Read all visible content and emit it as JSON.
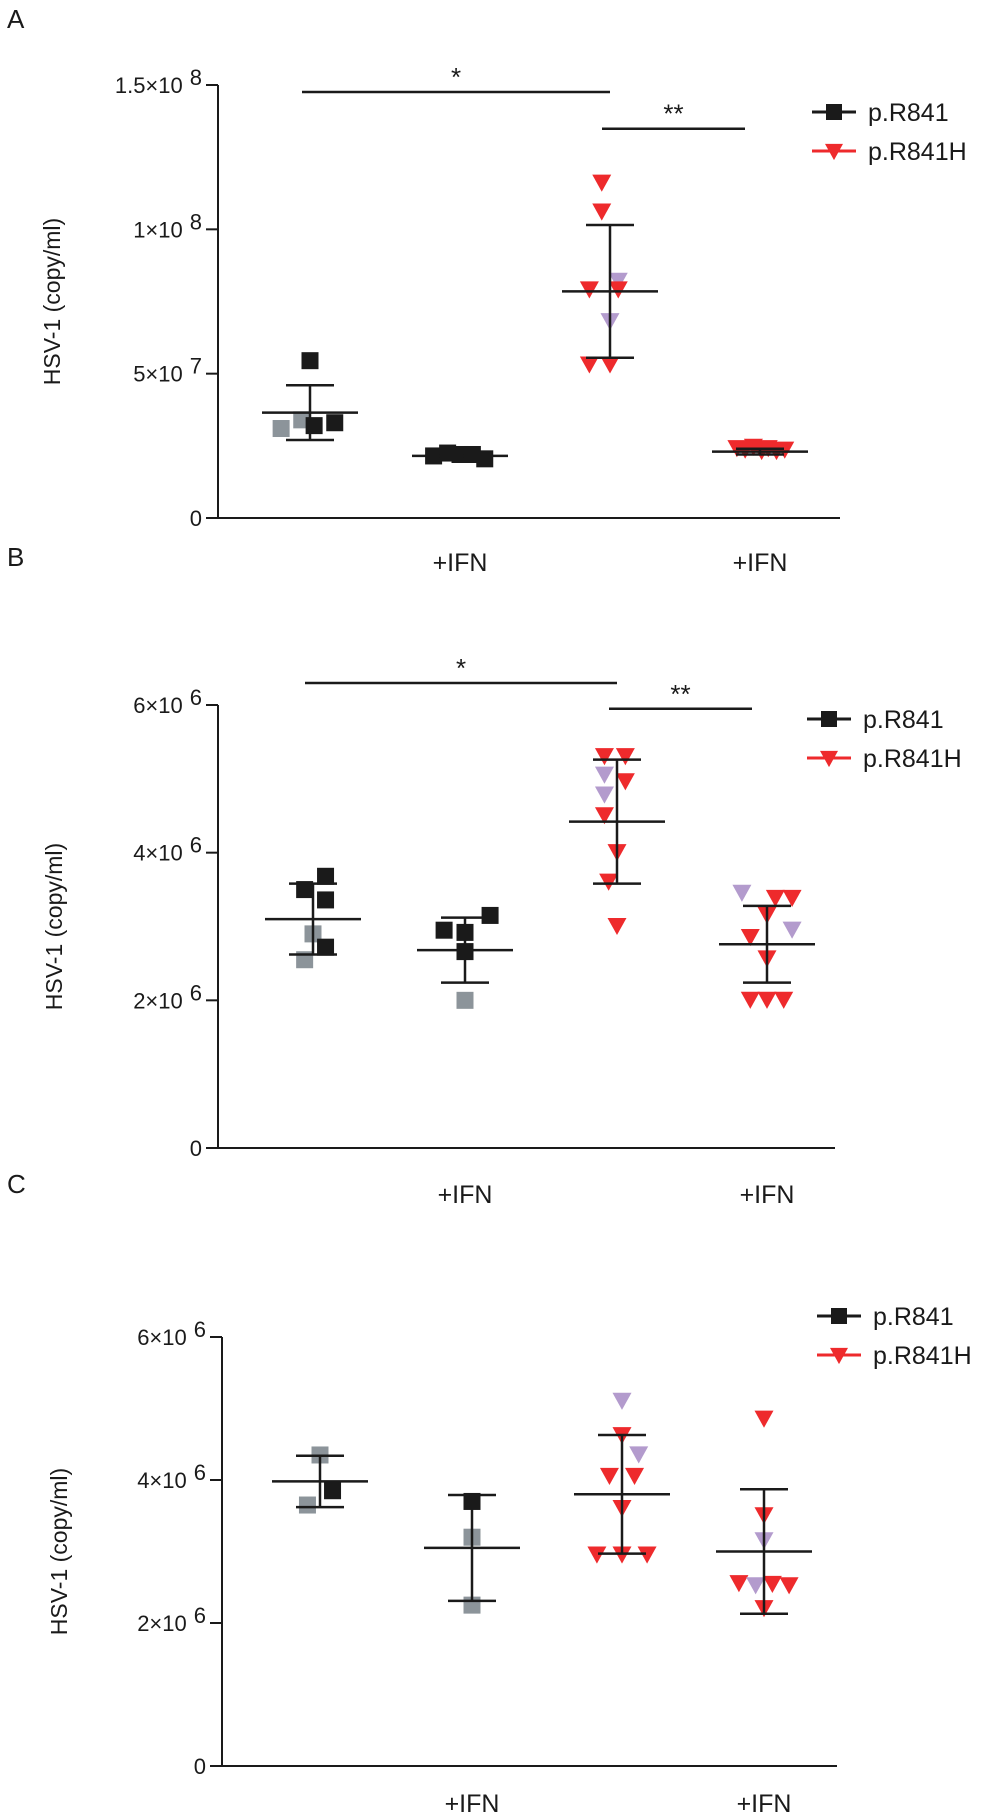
{
  "colors": {
    "black": "#1a1a1a",
    "red": "#ee2a2c",
    "gray": "#8c949a",
    "purple": "#b39bcd"
  },
  "chart_data": [
    {
      "panel": "A",
      "type": "scatter",
      "ylabel": "HSV-1 (copy/ml)",
      "ylim": [
        0,
        150000000
      ],
      "yticks": [
        {
          "value": 0,
          "mantissa": "0",
          "exponent": ""
        },
        {
          "value": 50000000,
          "mantissa": "5×10",
          "exponent": "7"
        },
        {
          "value": 100000000,
          "mantissa": "1×10",
          "exponent": "8"
        },
        {
          "value": 150000000,
          "mantissa": "1.5×10",
          "exponent": "8"
        }
      ],
      "categories": [
        "",
        "+IFN",
        "",
        "+IFN"
      ],
      "legend": [
        {
          "label": "p.R841",
          "marker": "square",
          "color": "#1a1a1a"
        },
        {
          "label": "p.R841H",
          "marker": "triangle",
          "color": "#ee2a2c"
        }
      ],
      "groups": [
        {
          "group": 0,
          "marker": "square",
          "mean": 36500000,
          "sd": 9500000,
          "points": [
            {
              "x": -0.35,
              "y": 31000000,
              "c": "gray"
            },
            {
              "x": -0.1,
              "y": 34000000,
              "c": "gray"
            },
            {
              "x": 0.0,
              "y": 54500000,
              "c": "black"
            },
            {
              "x": 0.05,
              "y": 32000000,
              "c": "black"
            },
            {
              "x": 0.3,
              "y": 33000000,
              "c": "black"
            }
          ]
        },
        {
          "group": 1,
          "marker": "square",
          "mean": 21500000,
          "sd": 0,
          "points": [
            {
              "x": -0.32,
              "y": 21500000,
              "c": "black"
            },
            {
              "x": -0.15,
              "y": 22500000,
              "c": "black"
            },
            {
              "x": 0.0,
              "y": 22000000,
              "c": "black"
            },
            {
              "x": 0.15,
              "y": 22000000,
              "c": "black"
            },
            {
              "x": 0.3,
              "y": 20500000,
              "c": "black"
            }
          ]
        },
        {
          "group": 2,
          "marker": "triangle",
          "mean": 78500000,
          "sd": 23000000,
          "points": [
            {
              "x": -0.1,
              "y": 116000000,
              "c": "red"
            },
            {
              "x": -0.1,
              "y": 106000000,
              "c": "red"
            },
            {
              "x": 0.1,
              "y": 82000000,
              "c": "purple"
            },
            {
              "x": -0.25,
              "y": 79000000,
              "c": "red"
            },
            {
              "x": 0.1,
              "y": 79000000,
              "c": "red"
            },
            {
              "x": 0.0,
              "y": 68000000,
              "c": "purple"
            },
            {
              "x": -0.25,
              "y": 53000000,
              "c": "red"
            },
            {
              "x": 0.0,
              "y": 53000000,
              "c": "red"
            }
          ]
        },
        {
          "group": 3,
          "marker": "triangle",
          "mean": 23000000,
          "sd": 1000000,
          "points": [
            {
              "x": -0.28,
              "y": 24000000,
              "c": "red"
            },
            {
              "x": -0.18,
              "y": 23500000,
              "c": "red"
            },
            {
              "x": -0.08,
              "y": 24500000,
              "c": "red"
            },
            {
              "x": 0.02,
              "y": 23000000,
              "c": "red"
            },
            {
              "x": 0.1,
              "y": 24000000,
              "c": "red"
            },
            {
              "x": 0.2,
              "y": 23000000,
              "c": "red"
            },
            {
              "x": 0.3,
              "y": 23500000,
              "c": "red"
            }
          ]
        }
      ],
      "significance": [
        {
          "from": 0,
          "to": 2,
          "label": "*",
          "level": 1.0
        },
        {
          "from": 2,
          "to": 3,
          "label": "**",
          "level": 0.86
        }
      ]
    },
    {
      "panel": "B",
      "type": "scatter",
      "ylabel": "HSV-1 (copy/ml)",
      "ylim": [
        0,
        6000000
      ],
      "yticks": [
        {
          "value": 0,
          "mantissa": "0",
          "exponent": ""
        },
        {
          "value": 2000000,
          "mantissa": "2×10",
          "exponent": "6"
        },
        {
          "value": 4000000,
          "mantissa": "4×10",
          "exponent": "6"
        },
        {
          "value": 6000000,
          "mantissa": "6×10",
          "exponent": "6"
        }
      ],
      "categories": [
        "",
        "+IFN",
        "",
        "+IFN"
      ],
      "legend": [
        {
          "label": "p.R841",
          "marker": "square",
          "color": "#1a1a1a"
        },
        {
          "label": "p.R841H",
          "marker": "triangle",
          "color": "#ee2a2c"
        }
      ],
      "groups": [
        {
          "group": 0,
          "marker": "square",
          "mean": 3100000,
          "sd": 480000,
          "points": [
            {
              "x": -0.1,
              "y": 3500000,
              "c": "black"
            },
            {
              "x": 0.15,
              "y": 3680000,
              "c": "black"
            },
            {
              "x": 0.15,
              "y": 3360000,
              "c": "black"
            },
            {
              "x": 0.0,
              "y": 2900000,
              "c": "gray"
            },
            {
              "x": 0.15,
              "y": 2720000,
              "c": "black"
            },
            {
              "x": -0.1,
              "y": 2550000,
              "c": "gray"
            }
          ]
        },
        {
          "group": 1,
          "marker": "square",
          "mean": 2680000,
          "sd": 440000,
          "points": [
            {
              "x": -0.25,
              "y": 2950000,
              "c": "black"
            },
            {
              "x": 0.0,
              "y": 2920000,
              "c": "black"
            },
            {
              "x": 0.3,
              "y": 3150000,
              "c": "black"
            },
            {
              "x": 0.0,
              "y": 2660000,
              "c": "black"
            },
            {
              "x": 0.0,
              "y": 2000000,
              "c": "gray"
            }
          ]
        },
        {
          "group": 2,
          "marker": "triangle",
          "mean": 4420000,
          "sd": 840000,
          "points": [
            {
              "x": -0.15,
              "y": 5300000,
              "c": "red"
            },
            {
              "x": 0.1,
              "y": 5300000,
              "c": "red"
            },
            {
              "x": -0.15,
              "y": 5050000,
              "c": "purple"
            },
            {
              "x": 0.1,
              "y": 4960000,
              "c": "red"
            },
            {
              "x": -0.15,
              "y": 4780000,
              "c": "purple"
            },
            {
              "x": -0.15,
              "y": 4500000,
              "c": "red"
            },
            {
              "x": 0.0,
              "y": 4000000,
              "c": "red"
            },
            {
              "x": -0.1,
              "y": 3600000,
              "c": "red"
            },
            {
              "x": 0.0,
              "y": 3000000,
              "c": "red"
            }
          ]
        },
        {
          "group": 3,
          "marker": "triangle",
          "mean": 2760000,
          "sd": 520000,
          "points": [
            {
              "x": -0.3,
              "y": 3450000,
              "c": "purple"
            },
            {
              "x": 0.1,
              "y": 3380000,
              "c": "red"
            },
            {
              "x": 0.3,
              "y": 3380000,
              "c": "red"
            },
            {
              "x": 0.0,
              "y": 3150000,
              "c": "red"
            },
            {
              "x": 0.3,
              "y": 2950000,
              "c": "purple"
            },
            {
              "x": -0.2,
              "y": 2850000,
              "c": "red"
            },
            {
              "x": 0.0,
              "y": 2560000,
              "c": "red"
            },
            {
              "x": -0.2,
              "y": 2000000,
              "c": "red"
            },
            {
              "x": 0.0,
              "y": 2000000,
              "c": "red"
            },
            {
              "x": 0.2,
              "y": 2000000,
              "c": "red"
            }
          ]
        }
      ],
      "significance": [
        {
          "from": 0,
          "to": 2,
          "label": "*",
          "level": 1.0
        },
        {
          "from": 2,
          "to": 3,
          "label": "**",
          "level": 0.88
        }
      ]
    },
    {
      "panel": "C",
      "type": "scatter",
      "ylabel": "HSV-1 (copy/ml)",
      "ylim": [
        0,
        6000000
      ],
      "yticks": [
        {
          "value": 0,
          "mantissa": "0",
          "exponent": ""
        },
        {
          "value": 2000000,
          "mantissa": "2×10",
          "exponent": "6"
        },
        {
          "value": 4000000,
          "mantissa": "4×10",
          "exponent": "6"
        },
        {
          "value": 6000000,
          "mantissa": "6×10",
          "exponent": "6"
        }
      ],
      "categories": [
        "",
        "+IFN",
        "",
        "+IFN"
      ],
      "legend": [
        {
          "label": "p.R841",
          "marker": "square",
          "color": "#1a1a1a"
        },
        {
          "label": "p.R841H",
          "marker": "triangle",
          "color": "#ee2a2c"
        }
      ],
      "groups": [
        {
          "group": 0,
          "marker": "square",
          "mean": 3980000,
          "sd": 360000,
          "points": [
            {
              "x": 0.0,
              "y": 4350000,
              "c": "gray"
            },
            {
              "x": 0.15,
              "y": 3850000,
              "c": "black"
            },
            {
              "x": -0.15,
              "y": 3650000,
              "c": "gray"
            }
          ]
        },
        {
          "group": 1,
          "marker": "square",
          "mean": 3050000,
          "sd": 740000,
          "points": [
            {
              "x": 0.0,
              "y": 3700000,
              "c": "black"
            },
            {
              "x": 0.0,
              "y": 3200000,
              "c": "gray"
            },
            {
              "x": 0.0,
              "y": 2250000,
              "c": "gray"
            }
          ]
        },
        {
          "group": 2,
          "marker": "triangle",
          "mean": 3800000,
          "sd": 830000,
          "points": [
            {
              "x": 0.0,
              "y": 5100000,
              "c": "purple"
            },
            {
              "x": 0.0,
              "y": 4620000,
              "c": "red"
            },
            {
              "x": 0.2,
              "y": 4350000,
              "c": "purple"
            },
            {
              "x": -0.15,
              "y": 4050000,
              "c": "red"
            },
            {
              "x": 0.15,
              "y": 4050000,
              "c": "red"
            },
            {
              "x": 0.0,
              "y": 3600000,
              "c": "red"
            },
            {
              "x": -0.3,
              "y": 2950000,
              "c": "red"
            },
            {
              "x": 0.0,
              "y": 2950000,
              "c": "red"
            },
            {
              "x": 0.3,
              "y": 2950000,
              "c": "red"
            }
          ]
        },
        {
          "group": 3,
          "marker": "triangle",
          "mean": 3000000,
          "sd": 870000,
          "points": [
            {
              "x": 0.0,
              "y": 4850000,
              "c": "red"
            },
            {
              "x": 0.0,
              "y": 3500000,
              "c": "red"
            },
            {
              "x": 0.0,
              "y": 3150000,
              "c": "purple"
            },
            {
              "x": -0.3,
              "y": 2550000,
              "c": "red"
            },
            {
              "x": -0.1,
              "y": 2520000,
              "c": "purple"
            },
            {
              "x": 0.1,
              "y": 2540000,
              "c": "red"
            },
            {
              "x": 0.3,
              "y": 2520000,
              "c": "red"
            },
            {
              "x": 0.0,
              "y": 2200000,
              "c": "red"
            }
          ]
        }
      ],
      "significance": []
    }
  ]
}
